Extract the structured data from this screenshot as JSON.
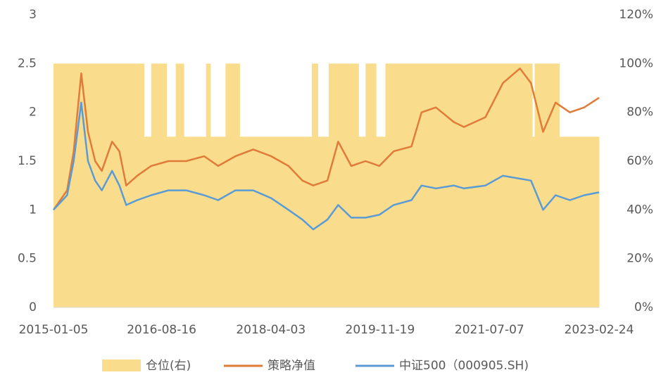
{
  "chart_data": {
    "type": "line",
    "xlim": [
      "2015-01-05",
      "2023-02-24"
    ],
    "xticks": [
      "2015-01-05",
      "2016-08-16",
      "2018-04-03",
      "2019-11-19",
      "2021-07-07",
      "2023-02-24"
    ],
    "ylim": [
      0,
      3
    ],
    "yticks": [
      0,
      0.5,
      1,
      1.5,
      2,
      2.5,
      3
    ],
    "y2lim": [
      0,
      120
    ],
    "y2ticks": [
      {
        "value": 0,
        "label": "0%"
      },
      {
        "value": 20,
        "label": "20%"
      },
      {
        "value": 40,
        "label": "40%"
      },
      {
        "value": 60,
        "label": "60%"
      },
      {
        "value": 80,
        "label": "80%"
      },
      {
        "value": 100,
        "label": "100%"
      },
      {
        "value": 120,
        "label": "120%"
      }
    ],
    "series": [
      {
        "name": "仓位(右)",
        "type": "area",
        "axis": "y2",
        "color": "#f9dd8c",
        "x": [
          "2015-01-05",
          "2016-05-12",
          "2016-06-20",
          "2016-09-12",
          "2016-11-01",
          "2016-12-15",
          "2017-04-15",
          "2017-05-08",
          "2017-07-30",
          "2017-10-15",
          "2018-11-12",
          "2018-12-15",
          "2019-02-12",
          "2019-07-25",
          "2019-09-01",
          "2019-10-28",
          "2019-12-18",
          "2022-02-25",
          "2022-03-10",
          "2022-07-22"
        ],
        "values": [
          100,
          70,
          100,
          70,
          100,
          70,
          100,
          70,
          100,
          70,
          100,
          70,
          100,
          70,
          100,
          70,
          100,
          70,
          100,
          70
        ]
      },
      {
        "name": "策略净值",
        "type": "line",
        "color": "#e07b39",
        "x": [
          "2015-01-05",
          "2015-03-20",
          "2015-04-25",
          "2015-06-05",
          "2015-07-12",
          "2015-08-20",
          "2015-09-25",
          "2015-11-20",
          "2015-12-30",
          "2016-02-05",
          "2016-04-05",
          "2016-06-20",
          "2016-09-22",
          "2016-12-28",
          "2017-04-05",
          "2017-06-20",
          "2017-09-22",
          "2017-12-28",
          "2018-04-05",
          "2018-07-08",
          "2018-09-22",
          "2018-11-20",
          "2019-02-05",
          "2019-04-05",
          "2019-06-15",
          "2019-09-01",
          "2019-11-15",
          "2020-02-01",
          "2020-05-08",
          "2020-07-02",
          "2020-09-18",
          "2020-12-25",
          "2021-02-18",
          "2021-06-15",
          "2021-09-18",
          "2021-12-20",
          "2022-02-18",
          "2022-04-25",
          "2022-07-02",
          "2022-09-18",
          "2022-12-05",
          "2023-02-24"
        ],
        "values": [
          1.0,
          1.2,
          1.6,
          2.4,
          1.8,
          1.5,
          1.4,
          1.7,
          1.6,
          1.25,
          1.35,
          1.45,
          1.5,
          1.5,
          1.55,
          1.45,
          1.55,
          1.62,
          1.55,
          1.45,
          1.3,
          1.25,
          1.3,
          1.7,
          1.45,
          1.5,
          1.45,
          1.6,
          1.65,
          2.0,
          2.05,
          1.9,
          1.85,
          1.95,
          2.3,
          2.45,
          2.3,
          1.8,
          2.1,
          2.0,
          2.05,
          2.15
        ]
      },
      {
        "name": "中证500（000905.SH)",
        "type": "line",
        "color": "#5b9bd5",
        "x": [
          "2015-01-05",
          "2015-03-20",
          "2015-04-25",
          "2015-06-05",
          "2015-07-12",
          "2015-08-20",
          "2015-09-25",
          "2015-11-20",
          "2015-12-30",
          "2016-02-05",
          "2016-04-05",
          "2016-06-20",
          "2016-09-22",
          "2016-12-28",
          "2017-04-05",
          "2017-06-20",
          "2017-09-22",
          "2017-12-28",
          "2018-04-05",
          "2018-07-08",
          "2018-09-22",
          "2018-11-20",
          "2019-02-05",
          "2019-04-05",
          "2019-06-15",
          "2019-09-01",
          "2019-11-15",
          "2020-02-01",
          "2020-05-08",
          "2020-07-02",
          "2020-09-18",
          "2020-12-25",
          "2021-02-18",
          "2021-06-15",
          "2021-09-18",
          "2021-12-20",
          "2022-02-18",
          "2022-04-25",
          "2022-07-02",
          "2022-09-18",
          "2022-12-05",
          "2023-02-24"
        ],
        "values": [
          1.0,
          1.15,
          1.5,
          2.1,
          1.5,
          1.3,
          1.2,
          1.4,
          1.25,
          1.05,
          1.1,
          1.15,
          1.2,
          1.2,
          1.15,
          1.1,
          1.2,
          1.2,
          1.12,
          1.0,
          0.9,
          0.8,
          0.9,
          1.05,
          0.92,
          0.92,
          0.95,
          1.05,
          1.1,
          1.25,
          1.22,
          1.25,
          1.22,
          1.25,
          1.35,
          1.32,
          1.3,
          1.0,
          1.15,
          1.1,
          1.15,
          1.18
        ]
      }
    ]
  }
}
